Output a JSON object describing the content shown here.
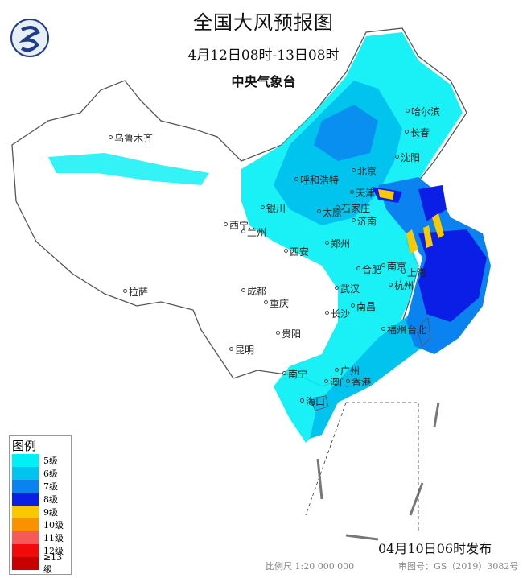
{
  "header": {
    "title": "全国大风预报图",
    "period": "4月12日08时-13日08时",
    "issuer": "中央气象台"
  },
  "logo": {
    "icon": "cma-logo-icon",
    "color": "#1e3c8c"
  },
  "cities": [
    "乌鲁木齐",
    "哈尔滨",
    "长春",
    "沈阳",
    "北京",
    "呼和浩特",
    "天津",
    "银川",
    "太原",
    "石家庄",
    "济南",
    "西宁",
    "兰州",
    "郑州",
    "西安",
    "合肥",
    "南京",
    "上海",
    "武汉",
    "杭州",
    "成都",
    "重庆",
    "长沙",
    "南昌",
    "福州",
    "台北",
    "拉萨",
    "贵阳",
    "昆明",
    "南宁",
    "广州",
    "澳门",
    "香港",
    "海口"
  ],
  "legend": {
    "title": "图例",
    "items": [
      {
        "label": "5级",
        "color": "#00f0f5"
      },
      {
        "label": "6级",
        "color": "#00c3ee"
      },
      {
        "label": "7级",
        "color": "#0a82f0"
      },
      {
        "label": "8级",
        "color": "#0a1ee6"
      },
      {
        "label": "9级",
        "color": "#fac800"
      },
      {
        "label": "10级",
        "color": "#fa9100"
      },
      {
        "label": "11级",
        "color": "#f55a5a"
      },
      {
        "label": "12级",
        "color": "#f00a0a"
      },
      {
        "label": "≥13级",
        "color": "#c80000"
      }
    ]
  },
  "footer": {
    "issued": "04月10日06时发布",
    "scale": "比例尺 1:20 000 000",
    "review_no": "审图号：GS（2019）3082号"
  }
}
